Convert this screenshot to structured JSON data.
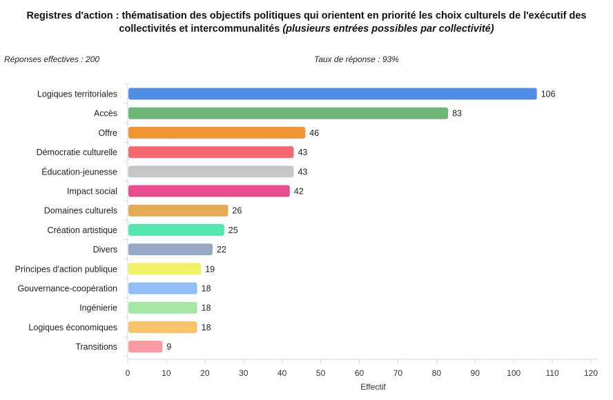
{
  "title_main": "Registres d'action : thématisation des objectifs politiques qui orientent en priorité les choix culturels de l'exécutif des collectivités et intercommunalités",
  "title_sub": "(plusieurs entrées possibles par collectivité)",
  "responses_label": "Réponses effectives : 200",
  "rate_label": "Taux de réponse : 93%",
  "chart_data": {
    "type": "bar",
    "orientation": "horizontal",
    "title": "Registres d'action : thématisation des objectifs politiques qui orientent en priorité les choix culturels de l'exécutif des collectivités et intercommunalités (plusieurs entrées possibles par collectivité)",
    "xlabel": "Effectif",
    "ylabel": "",
    "xlim": [
      0,
      120
    ],
    "xticks": [
      0,
      10,
      20,
      30,
      40,
      50,
      60,
      70,
      80,
      90,
      100,
      110,
      120
    ],
    "categories": [
      "Logiques territoriales",
      "Accès",
      "Offre",
      "Démocratie culturelle",
      "Éducation-jeunesse",
      "Impact social",
      "Domaines culturels",
      "Création artistique",
      "Divers",
      "Principes d'action publique",
      "Gouvernance-coopération",
      "Ingénierie",
      "Logiques économiques",
      "Transitions"
    ],
    "values": [
      106,
      83,
      46,
      43,
      43,
      42,
      26,
      25,
      22,
      19,
      18,
      18,
      18,
      9
    ],
    "colors": [
      "#4f8ee6",
      "#6fb57a",
      "#ee9433",
      "#f56a72",
      "#c7c7c7",
      "#e84e8c",
      "#e6a954",
      "#55e8ad",
      "#97a8c6",
      "#f2f266",
      "#8fbff5",
      "#a6e6a6",
      "#f8c46a",
      "#f79aa2"
    ],
    "show_data_labels": true,
    "grid": false
  }
}
